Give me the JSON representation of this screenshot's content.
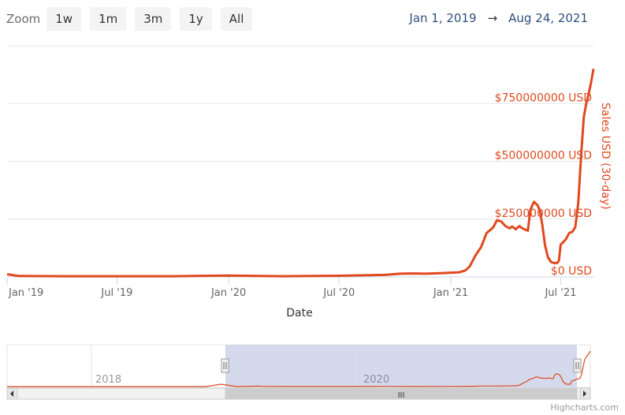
{
  "toolbar": {
    "zoom_label": "Zoom",
    "buttons": [
      "1w",
      "1m",
      "3m",
      "1y",
      "All"
    ]
  },
  "range": {
    "from": "Jan 1, 2019",
    "arrow": "→",
    "to": "Aug 24, 2021"
  },
  "colors": {
    "series": "#e0491f",
    "grid": "#e6e6e6",
    "axis_text": "#666666",
    "navigator_mask": "#cdd2e8"
  },
  "chart_data": {
    "type": "line",
    "title": "",
    "xlabel": "Date",
    "ylabel": "Sales USD (30-day)",
    "x_range": [
      "2019-01-01",
      "2021-08-24"
    ],
    "ylim": [
      0,
      1000000000
    ],
    "grid": true,
    "x_ticks": [
      "Jan '19",
      "Jul '19",
      "Jan '20",
      "Jul '20",
      "Jan '21",
      "Jul '21"
    ],
    "y_ticks": [
      {
        "value": 0,
        "label": "$0 USD"
      },
      {
        "value": 250000000,
        "label": "$250000000 USD"
      },
      {
        "value": 500000000,
        "label": "$500000000 USD"
      },
      {
        "value": 750000000,
        "label": "$750000000 USD"
      }
    ],
    "series": [
      {
        "x": [
          "2019-01-01",
          "2019-01-08",
          "2019-01-20",
          "2019-04-01",
          "2019-07-01",
          "2019-10-01",
          "2020-01-01",
          "2020-04-01",
          "2020-07-01",
          "2020-09-15",
          "2020-10-10",
          "2020-11-01",
          "2020-11-20",
          "2020-12-15",
          "2021-01-15",
          "2021-01-25",
          "2021-02-01",
          "2021-02-10",
          "2021-02-20",
          "2021-03-01",
          "2021-03-08",
          "2021-03-12",
          "2021-03-18",
          "2021-03-25",
          "2021-04-01",
          "2021-04-08",
          "2021-04-12",
          "2021-04-18",
          "2021-04-24",
          "2021-04-28",
          "2021-05-03",
          "2021-05-08",
          "2021-05-12",
          "2021-05-18",
          "2021-05-24",
          "2021-05-28",
          "2021-06-01",
          "2021-06-05",
          "2021-06-10",
          "2021-06-15",
          "2021-06-20",
          "2021-06-25",
          "2021-06-28",
          "2021-07-01",
          "2021-07-05",
          "2021-07-10",
          "2021-07-15",
          "2021-07-20",
          "2021-07-25",
          "2021-07-30",
          "2021-08-04",
          "2021-08-08",
          "2021-08-12",
          "2021-08-16",
          "2021-08-20",
          "2021-08-24"
        ],
        "y": [
          12000000,
          9000000,
          4000000,
          3000000,
          3000000,
          3000000,
          6000000,
          3000000,
          5000000,
          9000000,
          14000000,
          15000000,
          14000000,
          16000000,
          20000000,
          28000000,
          45000000,
          90000000,
          130000000,
          190000000,
          205000000,
          215000000,
          245000000,
          240000000,
          220000000,
          210000000,
          218000000,
          206000000,
          220000000,
          212000000,
          205000000,
          200000000,
          290000000,
          325000000,
          310000000,
          285000000,
          220000000,
          140000000,
          85000000,
          65000000,
          60000000,
          60000000,
          70000000,
          140000000,
          150000000,
          165000000,
          190000000,
          195000000,
          215000000,
          320000000,
          540000000,
          690000000,
          750000000,
          790000000,
          840000000,
          900000000
        ]
      }
    ],
    "navigator": {
      "labels": [
        "2018",
        "2020"
      ],
      "scrollbar_grip": "III"
    }
  },
  "credits": "Highcharts.com"
}
